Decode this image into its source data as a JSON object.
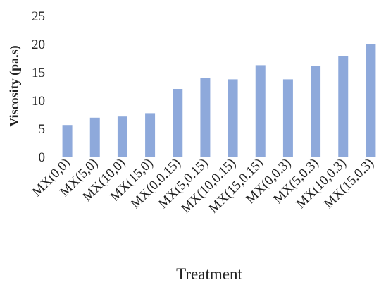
{
  "chart_data": {
    "type": "bar",
    "title": "",
    "xlabel": "Treatment",
    "ylabel": "Viscosity (pa.s)",
    "ylim": [
      0,
      25
    ],
    "yticks": [
      0,
      5,
      10,
      15,
      20,
      25
    ],
    "grid": false,
    "legend": "none",
    "categories": [
      "MX(0,0)",
      "MX(5,0)",
      "MX(10,0)",
      "MX(15,0)",
      "MX(0,0.15)",
      "MX(5,0.15)",
      "MX(10,0.15)",
      "MX(15,0.15)",
      "MX(0,0.3)",
      "MX(5,0.3)",
      "MX(10,0.3)",
      "MX(15,0.3)"
    ],
    "values": [
      5.6,
      6.9,
      7.1,
      7.7,
      12.0,
      13.9,
      13.7,
      16.2,
      13.7,
      16.1,
      17.8,
      19.9
    ],
    "bar_color": "#8EA9DB",
    "axis_color": "#7f7f7f"
  }
}
